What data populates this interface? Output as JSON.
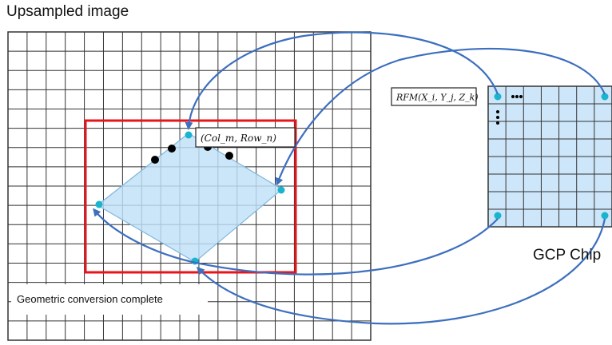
{
  "title": "Upsampled image",
  "labels": {
    "rfm": "RFM(X_i, Y_j, Z_k)",
    "col_row": "(Col_m, Row_n)",
    "geometric": "Geometric conversion complete",
    "gcp_chip": "GCP Chip"
  },
  "colors": {
    "grid": "#333333",
    "red_box": "#e8141b",
    "polygon_fill": "#bfe0f7",
    "polygon_stroke": "#7fb7de",
    "chip_fill": "#cde6f9",
    "cyan_point": "#19b5cf",
    "arrow": "#3d6fbf",
    "black_point": "#000000"
  }
}
